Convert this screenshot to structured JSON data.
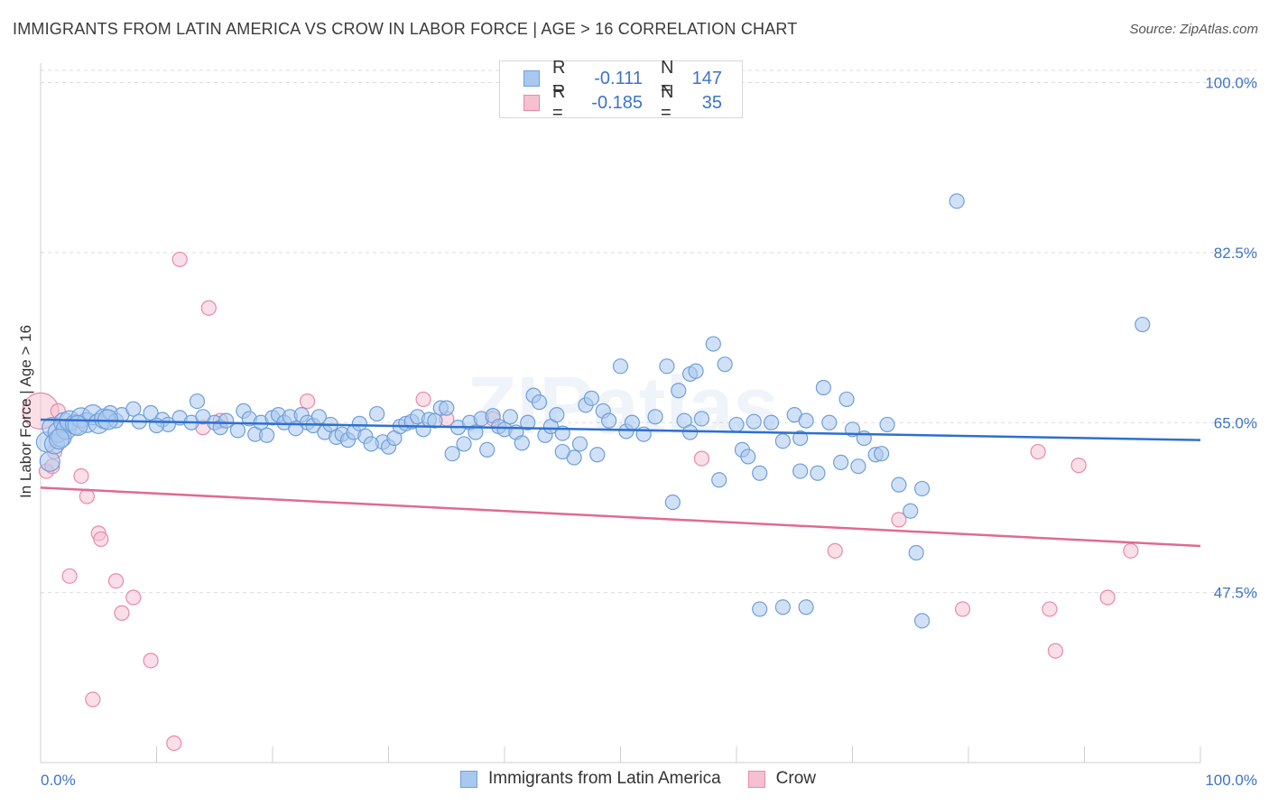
{
  "title": "IMMIGRANTS FROM LATIN AMERICA VS CROW IN LABOR FORCE | AGE > 16 CORRELATION CHART",
  "source": "Source: ZipAtlas.com",
  "legend": {
    "rows": [
      {
        "r_label": "R =",
        "r_value": "-0.111",
        "n_label": "N =",
        "n_value": "147"
      },
      {
        "r_label": "R =",
        "r_value": "-0.185",
        "n_label": "N =",
        "n_value": "35"
      }
    ]
  },
  "bottom_legend": {
    "series1": "Immigrants from Latin America",
    "series2": "Crow"
  },
  "colors": {
    "blue_fill": "#a9c8f0",
    "blue_stroke": "#6f9fd8",
    "blue_line": "#2f6fd0",
    "pink_fill": "#f6c0d0",
    "pink_stroke": "#e88aa8",
    "pink_line": "#e06a94",
    "tick_text": "#3c74c8"
  },
  "chart_data": {
    "type": "scatter",
    "title": "IMMIGRANTS FROM LATIN AMERICA VS CROW IN LABOR FORCE | AGE > 16 CORRELATION CHART",
    "xlabel": "",
    "ylabel": "In Labor Force | Age > 16",
    "xlim": [
      0,
      100
    ],
    "ylim": [
      30,
      102
    ],
    "x_tick_labels": [
      "0.0%",
      "100.0%"
    ],
    "y_ticks": [
      47.5,
      65.0,
      82.5,
      100.0
    ],
    "y_tick_labels": [
      "47.5%",
      "65.0%",
      "82.5%",
      "100.0%"
    ],
    "grid": "horizontal dashed",
    "legend_position": "top-center",
    "series": [
      {
        "name": "Immigrants from Latin America",
        "color": "#a9c8f0",
        "trend": {
          "x": [
            0,
            100
          ],
          "y": [
            65.3,
            63.2
          ]
        },
        "points": [
          [
            0.5,
            63.0
          ],
          [
            0.8,
            61.0
          ],
          [
            1.0,
            64.5
          ],
          [
            1.2,
            62.8
          ],
          [
            1.5,
            64.0
          ],
          [
            1.8,
            63.5
          ],
          [
            2.0,
            65.0
          ],
          [
            2.2,
            64.3
          ],
          [
            2.5,
            65.2
          ],
          [
            3.0,
            64.8
          ],
          [
            3.5,
            65.5
          ],
          [
            4.0,
            65.0
          ],
          [
            4.5,
            65.8
          ],
          [
            5.0,
            64.9
          ],
          [
            5.5,
            65.4
          ],
          [
            6.0,
            66.0
          ],
          [
            6.5,
            65.2
          ],
          [
            7.0,
            65.8
          ],
          [
            8.0,
            66.4
          ],
          [
            8.5,
            65.1
          ],
          [
            9.5,
            66.0
          ],
          [
            10.5,
            65.3
          ],
          [
            11.0,
            64.8
          ],
          [
            12.0,
            65.5
          ],
          [
            13.0,
            65.0
          ],
          [
            13.5,
            67.2
          ],
          [
            14.0,
            65.6
          ],
          [
            15.0,
            65.0
          ],
          [
            15.5,
            64.5
          ],
          [
            16.0,
            65.2
          ],
          [
            17.0,
            64.2
          ],
          [
            17.5,
            66.2
          ],
          [
            18.0,
            65.4
          ],
          [
            18.5,
            63.8
          ],
          [
            19.0,
            65.0
          ],
          [
            20.0,
            65.5
          ],
          [
            20.5,
            65.8
          ],
          [
            21.0,
            65.0
          ],
          [
            21.5,
            65.6
          ],
          [
            22.0,
            64.4
          ],
          [
            22.5,
            65.8
          ],
          [
            23.0,
            65.0
          ],
          [
            23.5,
            64.7
          ],
          [
            24.0,
            65.6
          ],
          [
            24.5,
            64.0
          ],
          [
            25.0,
            64.8
          ],
          [
            25.5,
            63.5
          ],
          [
            26.0,
            63.8
          ],
          [
            26.5,
            63.2
          ],
          [
            27.0,
            64.0
          ],
          [
            27.5,
            64.9
          ],
          [
            28.0,
            63.6
          ],
          [
            29.0,
            65.9
          ],
          [
            29.5,
            63.0
          ],
          [
            30.0,
            62.5
          ],
          [
            30.5,
            63.4
          ],
          [
            31.0,
            64.6
          ],
          [
            31.5,
            64.9
          ],
          [
            32.0,
            65.1
          ],
          [
            32.5,
            65.6
          ],
          [
            33.0,
            64.3
          ],
          [
            33.5,
            65.3
          ],
          [
            34.0,
            65.2
          ],
          [
            34.5,
            66.5
          ],
          [
            35.0,
            66.5
          ],
          [
            35.5,
            61.8
          ],
          [
            36.0,
            64.5
          ],
          [
            36.5,
            62.8
          ],
          [
            37.0,
            65.0
          ],
          [
            38.0,
            65.4
          ],
          [
            38.5,
            62.2
          ],
          [
            39.0,
            65.7
          ],
          [
            39.5,
            64.6
          ],
          [
            40.0,
            64.3
          ],
          [
            40.5,
            65.6
          ],
          [
            41.0,
            64.0
          ],
          [
            41.5,
            62.9
          ],
          [
            42.0,
            65.0
          ],
          [
            42.5,
            67.8
          ],
          [
            43.0,
            67.1
          ],
          [
            43.5,
            63.7
          ],
          [
            44.0,
            64.6
          ],
          [
            44.5,
            65.8
          ],
          [
            45.0,
            63.9
          ],
          [
            46.0,
            61.4
          ],
          [
            46.5,
            62.8
          ],
          [
            47.0,
            66.8
          ],
          [
            47.5,
            67.5
          ],
          [
            48.0,
            61.7
          ],
          [
            48.5,
            66.2
          ],
          [
            49.0,
            65.2
          ],
          [
            50.0,
            70.8
          ],
          [
            50.5,
            64.1
          ],
          [
            51.0,
            65.0
          ],
          [
            52.0,
            63.8
          ],
          [
            53.0,
            65.6
          ],
          [
            54.0,
            70.8
          ],
          [
            54.5,
            56.8
          ],
          [
            55.0,
            68.3
          ],
          [
            55.5,
            65.2
          ],
          [
            56.0,
            70.0
          ],
          [
            56.5,
            70.3
          ],
          [
            57.0,
            65.4
          ],
          [
            58.0,
            73.1
          ],
          [
            58.5,
            59.1
          ],
          [
            59.0,
            71.0
          ],
          [
            60.0,
            64.8
          ],
          [
            60.5,
            62.2
          ],
          [
            61.0,
            61.5
          ],
          [
            61.5,
            65.1
          ],
          [
            62.0,
            59.8
          ],
          [
            63.0,
            65.0
          ],
          [
            64.0,
            63.1
          ],
          [
            65.0,
            65.8
          ],
          [
            65.5,
            63.4
          ],
          [
            66.0,
            65.2
          ],
          [
            67.0,
            59.8
          ],
          [
            67.5,
            68.6
          ],
          [
            68.0,
            65.0
          ],
          [
            69.0,
            60.9
          ],
          [
            69.5,
            67.4
          ],
          [
            70.0,
            64.3
          ],
          [
            71.0,
            63.4
          ],
          [
            72.0,
            61.7
          ],
          [
            72.5,
            61.8
          ],
          [
            73.0,
            64.8
          ],
          [
            74.0,
            58.6
          ],
          [
            75.0,
            55.9
          ],
          [
            75.5,
            51.6
          ],
          [
            76.0,
            58.2
          ],
          [
            62.0,
            45.8
          ],
          [
            64.0,
            46.0
          ],
          [
            76.0,
            44.6
          ],
          [
            66.0,
            46.0
          ],
          [
            79.0,
            87.8
          ],
          [
            95.0,
            75.1
          ],
          [
            65.5,
            60.0
          ],
          [
            70.5,
            60.5
          ],
          [
            56.0,
            64.0
          ],
          [
            45.0,
            62.0
          ],
          [
            37.5,
            64.0
          ],
          [
            28.5,
            62.8
          ],
          [
            19.5,
            63.7
          ],
          [
            10.0,
            64.7
          ],
          [
            5.8,
            65.3
          ],
          [
            3.2,
            64.7
          ],
          [
            1.6,
            63.3
          ]
        ]
      },
      {
        "name": "Crow",
        "color": "#f6c0d0",
        "trend": {
          "x": [
            0,
            100
          ],
          "y": [
            58.3,
            52.3
          ]
        },
        "points": [
          [
            0.0,
            66.2
          ],
          [
            0.5,
            60.0
          ],
          [
            1.0,
            60.5
          ],
          [
            1.5,
            66.2
          ],
          [
            2.0,
            64.0
          ],
          [
            3.5,
            59.5
          ],
          [
            4.0,
            57.4
          ],
          [
            5.0,
            53.6
          ],
          [
            5.2,
            53.0
          ],
          [
            2.5,
            49.2
          ],
          [
            6.5,
            48.7
          ],
          [
            7.0,
            45.4
          ],
          [
            8.0,
            47.0
          ],
          [
            9.5,
            40.5
          ],
          [
            4.5,
            36.5
          ],
          [
            11.5,
            32.0
          ],
          [
            12.0,
            81.8
          ],
          [
            14.5,
            76.8
          ],
          [
            14.0,
            64.5
          ],
          [
            15.5,
            65.2
          ],
          [
            23.0,
            67.2
          ],
          [
            33.0,
            67.4
          ],
          [
            35.0,
            65.4
          ],
          [
            39.0,
            65.4
          ],
          [
            57.0,
            61.3
          ],
          [
            68.5,
            51.8
          ],
          [
            74.0,
            55.0
          ],
          [
            79.5,
            45.8
          ],
          [
            86.0,
            62.0
          ],
          [
            87.0,
            45.8
          ],
          [
            87.5,
            41.5
          ],
          [
            89.5,
            60.6
          ],
          [
            92.0,
            47.0
          ],
          [
            94.0,
            51.8
          ],
          [
            1.2,
            62.0
          ]
        ]
      }
    ]
  }
}
